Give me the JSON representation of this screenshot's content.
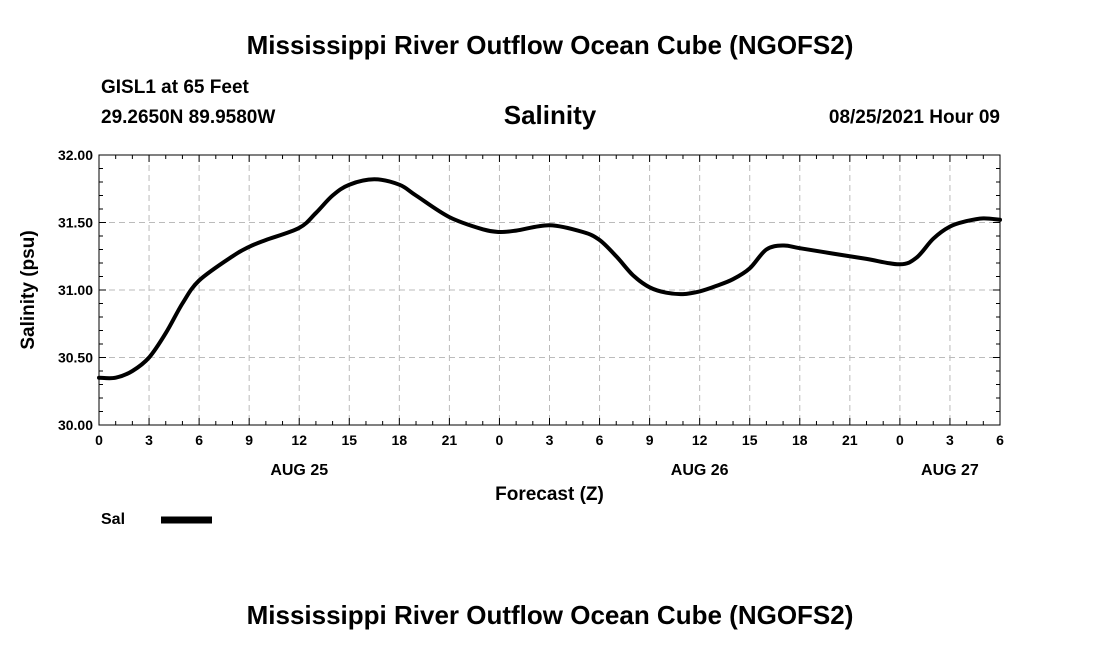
{
  "page": {
    "title_top": "Mississippi River Outflow Ocean Cube (NGOFS2)",
    "title_bottom": "Mississippi River Outflow Ocean Cube (NGOFS2)",
    "station": "GISL1 at 65 Feet",
    "coords": "29.2650N  89.9580W",
    "variable": "Salinity",
    "timestamp": "08/25/2021 Hour 09"
  },
  "chart_data": {
    "type": "line",
    "title": "Salinity",
    "xlabel": "Forecast (Z)",
    "ylabel": "Salinity (psu)",
    "ylim": [
      30.0,
      32.0
    ],
    "xlim_hours": [
      0,
      54
    ],
    "grid": true,
    "y_ticks": [
      "30.00",
      "30.50",
      "31.00",
      "31.50",
      "32.00"
    ],
    "x_tick_labels": [
      "0",
      "3",
      "6",
      "9",
      "12",
      "15",
      "18",
      "21",
      "0",
      "3",
      "6",
      "9",
      "12",
      "15",
      "18",
      "21",
      "0",
      "3",
      "6"
    ],
    "date_labels": [
      {
        "label": "AUG 25",
        "hour": 12
      },
      {
        "label": "AUG 26",
        "hour": 36
      },
      {
        "label": "AUG 27",
        "hour": 51
      }
    ],
    "legend": [
      {
        "name": "Sal",
        "color": "#000000"
      }
    ],
    "series": [
      {
        "name": "Sal",
        "color": "#000000",
        "x": [
          0,
          1,
          2,
          3,
          4,
          5,
          6,
          8,
          9,
          10,
          12,
          13,
          14,
          15,
          16.5,
          18,
          19,
          21,
          23,
          24,
          25,
          27,
          29,
          30,
          31,
          32,
          33,
          34,
          35,
          36,
          37,
          38,
          39,
          40,
          41,
          42,
          44,
          46,
          48,
          49,
          50,
          51,
          52,
          53,
          54
        ],
        "values": [
          30.35,
          30.35,
          30.4,
          30.5,
          30.68,
          30.9,
          31.07,
          31.25,
          31.32,
          31.37,
          31.46,
          31.57,
          31.7,
          31.78,
          31.82,
          31.78,
          31.7,
          31.54,
          31.45,
          31.43,
          31.44,
          31.48,
          31.43,
          31.37,
          31.25,
          31.11,
          31.02,
          30.98,
          30.97,
          30.99,
          31.03,
          31.08,
          31.16,
          31.3,
          31.33,
          31.31,
          31.27,
          31.23,
          31.19,
          31.24,
          31.38,
          31.47,
          31.51,
          31.53,
          31.52
        ]
      }
    ]
  }
}
